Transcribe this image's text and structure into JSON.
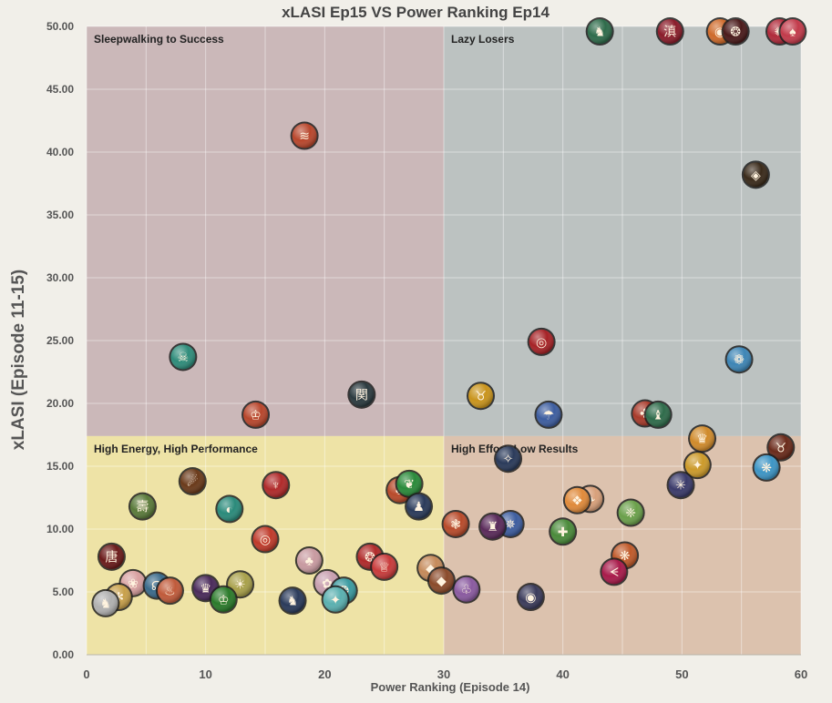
{
  "chart_data": {
    "type": "scatter",
    "title": "xLASI Ep15 VS Power Ranking Ep14",
    "xlabel": "Power Ranking (Episode 14)",
    "ylabel": "xLASI (Episode 11-15)",
    "xlim": [
      0,
      60
    ],
    "ylim": [
      0,
      50
    ],
    "x_ticks": [
      "0",
      "10",
      "20",
      "30",
      "40",
      "50",
      "60"
    ],
    "y_ticks": [
      "0.00",
      "5.00",
      "10.00",
      "15.00",
      "20.00",
      "25.00",
      "30.00",
      "35.00",
      "40.00",
      "45.00",
      "50.00"
    ],
    "grid": true,
    "quadrants": [
      {
        "label": "Sleepwalking to Success",
        "x_range": [
          0,
          30
        ],
        "y_range": [
          17.4,
          50
        ],
        "color": "#cbb8b9"
      },
      {
        "label": "Lazy Losers",
        "x_range": [
          30,
          60
        ],
        "y_range": [
          17.4,
          50
        ],
        "color": "#bcc2c1"
      },
      {
        "label": "High Energy, High Performance",
        "x_range": [
          0,
          30
        ],
        "y_range": [
          0,
          17.4
        ],
        "color": "#eee3a6"
      },
      {
        "label": "High Effort, Low Results",
        "x_range": [
          30,
          60
        ],
        "y_range": [
          0,
          17.4
        ],
        "color": "#dcc2ae"
      }
    ],
    "points": [
      {
        "x": 18.3,
        "y": 41.3,
        "icon": "#b8462c",
        "glyph": "≋"
      },
      {
        "x": 8.1,
        "y": 23.7,
        "icon": "#2e8c7a",
        "glyph": "☠"
      },
      {
        "x": 14.2,
        "y": 19.1,
        "icon": "#b8462c",
        "glyph": "♔"
      },
      {
        "x": 23.1,
        "y": 20.7,
        "icon": "#2b3a3f",
        "glyph": "関"
      },
      {
        "x": 43.1,
        "y": 49.6,
        "icon": "#2e6b4a",
        "glyph": "♞"
      },
      {
        "x": 49.0,
        "y": 49.6,
        "icon": "#8a1c2a",
        "glyph": "滇"
      },
      {
        "x": 53.2,
        "y": 49.6,
        "icon": "#cf6a2a",
        "glyph": "◉"
      },
      {
        "x": 54.5,
        "y": 49.6,
        "icon": "#4a1a1a",
        "glyph": "❂"
      },
      {
        "x": 58.2,
        "y": 49.6,
        "icon": "#b02a3a",
        "glyph": "✺"
      },
      {
        "x": 59.3,
        "y": 49.6,
        "icon": "#c23a4a",
        "glyph": "♠"
      },
      {
        "x": 56.2,
        "y": 38.2,
        "icon": "#3a2a1a",
        "glyph": "◈"
      },
      {
        "x": 38.2,
        "y": 24.9,
        "icon": "#a62226",
        "glyph": "◎"
      },
      {
        "x": 54.8,
        "y": 23.5,
        "icon": "#3d85b5",
        "glyph": "❁"
      },
      {
        "x": 33.1,
        "y": 20.6,
        "icon": "#c9941c",
        "glyph": "♉"
      },
      {
        "x": 38.8,
        "y": 19.1,
        "icon": "#3d5d9f",
        "glyph": "☂"
      },
      {
        "x": 46.9,
        "y": 19.2,
        "icon": "#a83a2a",
        "glyph": "✤"
      },
      {
        "x": 48.0,
        "y": 19.1,
        "icon": "#2e6b4a",
        "glyph": "♝"
      },
      {
        "x": 51.7,
        "y": 17.2,
        "icon": "#d08a2a",
        "glyph": "♛"
      },
      {
        "x": 58.3,
        "y": 16.5,
        "icon": "#6a2a1a",
        "glyph": "♉"
      },
      {
        "x": 51.3,
        "y": 15.1,
        "icon": "#cc9a2a",
        "glyph": "✦"
      },
      {
        "x": 57.1,
        "y": 14.9,
        "icon": "#3d95c5",
        "glyph": "❋"
      },
      {
        "x": 35.4,
        "y": 15.6,
        "icon": "#2a3a5a",
        "glyph": "✧"
      },
      {
        "x": 49.9,
        "y": 13.5,
        "icon": "#3a3a6a",
        "glyph": "✳"
      },
      {
        "x": 42.3,
        "y": 12.4,
        "icon": "#d8a07a",
        "glyph": "❧"
      },
      {
        "x": 41.2,
        "y": 12.3,
        "icon": "#e08a3a",
        "glyph": "❖"
      },
      {
        "x": 45.7,
        "y": 11.3,
        "icon": "#6aa04a",
        "glyph": "❈"
      },
      {
        "x": 31.0,
        "y": 10.4,
        "icon": "#b84a2a",
        "glyph": "❃"
      },
      {
        "x": 35.6,
        "y": 10.4,
        "icon": "#3d5d9f",
        "glyph": "✵"
      },
      {
        "x": 34.1,
        "y": 10.2,
        "icon": "#5a2a5a",
        "glyph": "♜"
      },
      {
        "x": 40.0,
        "y": 9.8,
        "icon": "#4a8a3a",
        "glyph": "✚"
      },
      {
        "x": 45.2,
        "y": 7.9,
        "icon": "#c05a2a",
        "glyph": "❋"
      },
      {
        "x": 44.3,
        "y": 6.6,
        "icon": "#a81a4a",
        "glyph": "ᗕ"
      },
      {
        "x": 31.9,
        "y": 5.2,
        "icon": "#8a5aa0",
        "glyph": "♧"
      },
      {
        "x": 37.3,
        "y": 4.6,
        "icon": "#3a3a5a",
        "glyph": "◉"
      },
      {
        "x": 8.9,
        "y": 13.8,
        "icon": "#6a3a1a",
        "glyph": "☄"
      },
      {
        "x": 15.9,
        "y": 13.5,
        "icon": "#b02a2a",
        "glyph": "♆"
      },
      {
        "x": 26.3,
        "y": 13.1,
        "icon": "#b84a2a",
        "glyph": "♣"
      },
      {
        "x": 27.1,
        "y": 13.6,
        "icon": "#2a8a3a",
        "glyph": "❦"
      },
      {
        "x": 27.9,
        "y": 11.8,
        "icon": "#2a3a5a",
        "glyph": "♟"
      },
      {
        "x": 4.7,
        "y": 11.8,
        "icon": "#5a7a3a",
        "glyph": "壽"
      },
      {
        "x": 12.0,
        "y": 11.6,
        "icon": "#2a8a7a",
        "glyph": "◐"
      },
      {
        "x": 15.0,
        "y": 9.2,
        "icon": "#c03a2a",
        "glyph": "◎"
      },
      {
        "x": 2.1,
        "y": 7.8,
        "icon": "#6a1a1a",
        "glyph": "唐"
      },
      {
        "x": 18.7,
        "y": 7.5,
        "icon": "#c89aa0",
        "glyph": "♣"
      },
      {
        "x": 23.8,
        "y": 7.8,
        "icon": "#b02a2a",
        "glyph": "❂"
      },
      {
        "x": 25.0,
        "y": 7.0,
        "icon": "#c83a3a",
        "glyph": "♕"
      },
      {
        "x": 28.9,
        "y": 6.9,
        "icon": "#c58a5a",
        "glyph": "◆"
      },
      {
        "x": 29.8,
        "y": 5.9,
        "icon": "#8a4a2a",
        "glyph": "◆"
      },
      {
        "x": 3.9,
        "y": 5.7,
        "icon": "#d8a0a0",
        "glyph": "❀"
      },
      {
        "x": 5.9,
        "y": 5.5,
        "icon": "#3a6a8a",
        "glyph": "☊"
      },
      {
        "x": 7.0,
        "y": 5.1,
        "icon": "#c05a3a",
        "glyph": "♨"
      },
      {
        "x": 10.0,
        "y": 5.3,
        "icon": "#4a2a5a",
        "glyph": "♛"
      },
      {
        "x": 12.9,
        "y": 5.6,
        "icon": "#a8a04a",
        "glyph": "☀"
      },
      {
        "x": 11.5,
        "y": 4.4,
        "icon": "#2a7a2a",
        "glyph": "♔"
      },
      {
        "x": 17.3,
        "y": 4.3,
        "icon": "#2a3a5a",
        "glyph": "♞"
      },
      {
        "x": 20.2,
        "y": 5.7,
        "icon": "#c8a0b0",
        "glyph": "✿"
      },
      {
        "x": 21.6,
        "y": 5.1,
        "icon": "#3a9aa0",
        "glyph": "❂"
      },
      {
        "x": 20.9,
        "y": 4.4,
        "icon": "#5ab0b0",
        "glyph": "✦"
      },
      {
        "x": 2.7,
        "y": 4.6,
        "icon": "#c8a04a",
        "glyph": "✻"
      },
      {
        "x": 1.6,
        "y": 4.1,
        "icon": "#b0b0b0",
        "glyph": "♞"
      }
    ]
  }
}
